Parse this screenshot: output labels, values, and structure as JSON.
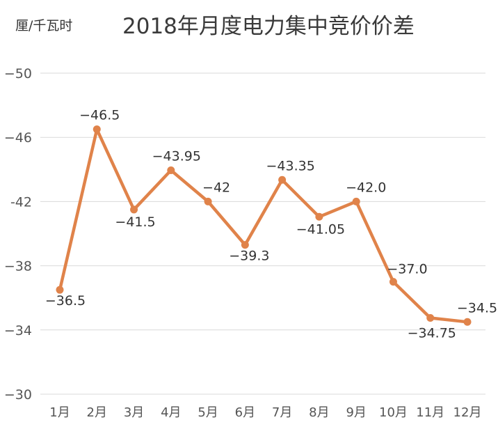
{
  "chart_data": {
    "type": "line",
    "title": "2018年月度电力集中竞价价差",
    "ylabel": "厘/千瓦时",
    "xlabel": "",
    "categories": [
      "1月",
      "2月",
      "3月",
      "4月",
      "5月",
      "6月",
      "7月",
      "8月",
      "9月",
      "10月",
      "11月",
      "12月"
    ],
    "values": [
      -36.5,
      -46.5,
      -41.5,
      -43.95,
      -42,
      -39.3,
      -43.35,
      -41.05,
      -42.0,
      -37.0,
      -34.75,
      -34.5
    ],
    "data_labels": [
      "−36.5",
      "−46.5",
      "−41.5",
      "−43.95",
      "−42",
      "−39.3",
      "−43.35",
      "−41.05",
      "−42.0",
      "−37.0",
      "−34.75",
      "−34.5"
    ],
    "yticks": [
      "−50",
      "−46",
      "-42",
      "−38",
      "−34",
      "−30"
    ],
    "ytick_values": [
      -50,
      -46,
      -42,
      -38,
      -34,
      -30
    ],
    "ylim": [
      -50,
      -30
    ],
    "y_inverted": true,
    "grid": true,
    "line_color": "#e0834a",
    "grid_color": "#d9d9d9"
  }
}
